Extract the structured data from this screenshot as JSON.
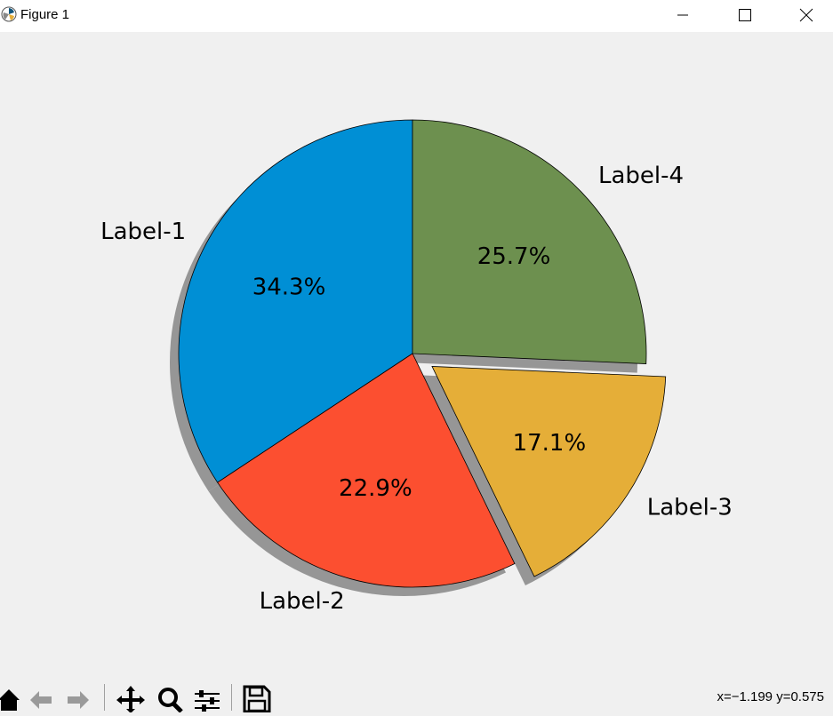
{
  "window": {
    "title": "Figure 1"
  },
  "status": {
    "coords": "x=−1.199 y=0.575"
  },
  "toolbar": {
    "buttons": [
      "home-icon",
      "back-icon",
      "forward-icon",
      "pan-icon",
      "zoom-icon",
      "configure-icon",
      "save-icon"
    ]
  },
  "chart_data": {
    "type": "pie",
    "title": "",
    "labels": [
      "Label-1",
      "Label-2",
      "Label-3",
      "Label-4"
    ],
    "values": [
      34.3,
      22.9,
      17.1,
      25.7
    ],
    "pct_labels": [
      "34.3%",
      "22.9%",
      "17.1%",
      "25.7%"
    ],
    "colors": [
      "#008fd5",
      "#fc4f30",
      "#e5ae38",
      "#6d904f"
    ],
    "explode": [
      0,
      0,
      0.1,
      0
    ],
    "start_angle_deg": 90,
    "direction": "counterclockwise",
    "shadow": true,
    "edgecolor": "#000000"
  }
}
